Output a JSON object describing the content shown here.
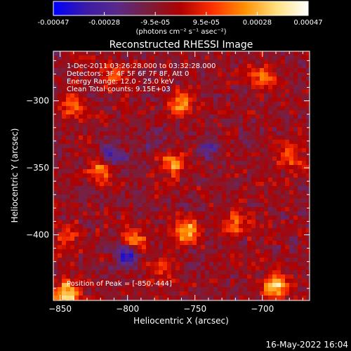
{
  "colorbar": {
    "ticks": [
      "-0.00047",
      "-0.00028",
      "-9.5e-05",
      "9.5e-05",
      "0.00028",
      "0.00047"
    ],
    "unit_label": "(photons cm⁻² s⁻¹ asec⁻²)",
    "colors": [
      "#0000ff",
      "#3a1aa8",
      "#5a2a8a",
      "#7a1e3a",
      "#b00000",
      "#ff3000",
      "#ff9000",
      "#ffe080",
      "#ffffff"
    ]
  },
  "plot": {
    "title": "Reconstructed RHESSI Image",
    "annotations": [
      " 1-Dec-2011 03:26:28.000 to 03:32:28.000",
      "Detectors: 3F 4F 5F 6F 7F 8F, Att 0",
      "Energy Range: 12.0 - 25.0 keV",
      "Clean     Total counts: 9.15E+03"
    ],
    "peak_label": "Position of Peak = [-850,-444]"
  },
  "footer": {
    "timestamp": "16-May-2022 16:04"
  },
  "chart_data": {
    "type": "heatmap",
    "title": "Reconstructed RHESSI Image",
    "xlabel": "Heliocentric X (arcsec)",
    "ylabel": "Heliocentric Y (arcsec)",
    "xlim": [
      -855,
      -665
    ],
    "ylim": [
      -449,
      -263
    ],
    "x_ticks": [
      -850,
      -800,
      -750,
      -700
    ],
    "y_ticks": [
      -300,
      -350,
      -400
    ],
    "x_tick_labels": [
      "−850",
      "−800",
      "−750",
      "−700"
    ],
    "y_tick_labels": [
      "−300",
      "−350",
      "−400"
    ],
    "colorbar_range": [
      -0.00047,
      0.00047
    ],
    "peak_position": [
      -850,
      -444
    ],
    "hotspots": [
      {
        "x": -845,
        "y": -444,
        "value": 0.00047
      },
      {
        "x": -690,
        "y": -438,
        "value": 0.00042
      },
      {
        "x": -757,
        "y": -397,
        "value": 0.00036
      },
      {
        "x": -767,
        "y": -347,
        "value": 0.0003
      },
      {
        "x": -795,
        "y": -404,
        "value": 0.00028
      },
      {
        "x": -820,
        "y": -352,
        "value": 0.00026
      },
      {
        "x": -760,
        "y": -303,
        "value": 0.00024
      },
      {
        "x": -700,
        "y": -283,
        "value": 0.00024
      },
      {
        "x": -840,
        "y": -303,
        "value": 0.00022
      },
      {
        "x": -720,
        "y": -392,
        "value": 0.00022
      },
      {
        "x": -680,
        "y": -342,
        "value": 0.0002
      },
      {
        "x": -810,
        "y": -283,
        "value": 0.00018
      },
      {
        "x": -845,
        "y": -403,
        "value": 0.00018
      },
      {
        "x": -775,
        "y": -425,
        "value": 0.00016
      },
      {
        "x": -800,
        "y": -415,
        "value": -0.00034
      },
      {
        "x": -812,
        "y": -342,
        "value": -0.00024
      },
      {
        "x": -740,
        "y": -335,
        "value": -0.00016
      },
      {
        "x": -780,
        "y": -330,
        "value": -0.00012
      }
    ]
  }
}
